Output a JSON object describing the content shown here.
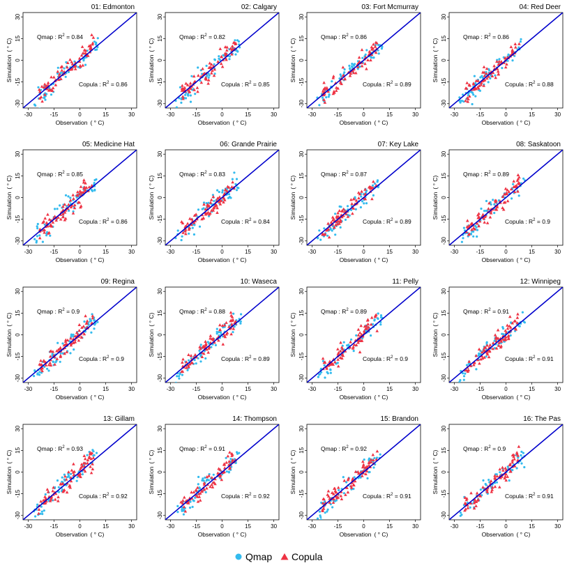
{
  "chart_data": {
    "type": "scatter",
    "layout": "4x4 small multiples",
    "xlabel": "Observation",
    "ylabel": "Simulation",
    "unit": "( ° C)",
    "xlim": [
      -33,
      33
    ],
    "ylim": [
      -33,
      33
    ],
    "ticks": [
      "-30",
      "-15",
      "0",
      "15",
      "30"
    ],
    "reference_line": {
      "label": "1:1",
      "color": "#0000cc"
    },
    "series": [
      {
        "name": "Qmap",
        "marker": "circle",
        "color": "#33bbee"
      },
      {
        "name": "Copula",
        "marker": "triangle",
        "color": "#ee3344"
      }
    ],
    "legend": {
      "position": "bottom-center",
      "items": [
        "Qmap",
        "Copula"
      ]
    },
    "panels": [
      {
        "title": "01: Edmonton",
        "qmap_r2": "0.84",
        "copula_r2": "0.86"
      },
      {
        "title": "02: Calgary",
        "qmap_r2": "0.82",
        "copula_r2": "0.85"
      },
      {
        "title": "03: Fort Mcmurray",
        "qmap_r2": "0.86",
        "copula_r2": "0.89"
      },
      {
        "title": "04: Red Deer",
        "qmap_r2": "0.86",
        "copula_r2": "0.88"
      },
      {
        "title": "05: Medicine Hat",
        "qmap_r2": "0.85",
        "copula_r2": "0.86"
      },
      {
        "title": "06: Grande Prairie",
        "qmap_r2": "0.83",
        "copula_r2": "0.84"
      },
      {
        "title": "07: Key Lake",
        "qmap_r2": "0.87",
        "copula_r2": "0.89"
      },
      {
        "title": "08: Saskatoon",
        "qmap_r2": "0.89",
        "copula_r2": "0.9"
      },
      {
        "title": "09: Regina",
        "qmap_r2": "0.9",
        "copula_r2": "0.9"
      },
      {
        "title": "10: Waseca",
        "qmap_r2": "0.88",
        "copula_r2": "0.89"
      },
      {
        "title": "11: Pelly",
        "qmap_r2": "0.89",
        "copula_r2": "0.9"
      },
      {
        "title": "12: Winnipeg",
        "qmap_r2": "0.91",
        "copula_r2": "0.91"
      },
      {
        "title": "13: Gillam",
        "qmap_r2": "0.93",
        "copula_r2": "0.92"
      },
      {
        "title": "14: Thompson",
        "qmap_r2": "0.91",
        "copula_r2": "0.92"
      },
      {
        "title": "15: Brandon",
        "qmap_r2": "0.92",
        "copula_r2": "0.91"
      },
      {
        "title": "16: The Pas",
        "qmap_r2": "0.9",
        "copula_r2": "0.91"
      }
    ]
  },
  "labels": {
    "r2_prefix": "R",
    "r2_sup": "2",
    "r2_eq": " = ",
    "qmap_label": "Qmap :",
    "copula_label": "Copula :"
  }
}
